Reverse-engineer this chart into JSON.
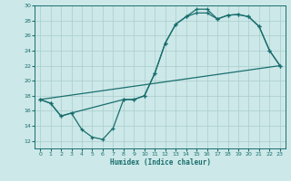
{
  "xlabel": "Humidex (Indice chaleur)",
  "bg_color": "#cce8e8",
  "grid_color": "#aacccc",
  "line_color": "#1a6e6e",
  "xlim": [
    -0.5,
    23.5
  ],
  "ylim": [
    11,
    30
  ],
  "xticks": [
    0,
    1,
    2,
    3,
    4,
    5,
    6,
    7,
    8,
    9,
    10,
    11,
    12,
    13,
    14,
    15,
    16,
    17,
    18,
    19,
    20,
    21,
    22,
    23
  ],
  "yticks": [
    12,
    14,
    16,
    18,
    20,
    22,
    24,
    26,
    28,
    30
  ],
  "line1_x": [
    0,
    1,
    2,
    3,
    4,
    5,
    6,
    7,
    8,
    9,
    10,
    11,
    12,
    13,
    14,
    15,
    16,
    17,
    18,
    19,
    20,
    21,
    22,
    23
  ],
  "line1_y": [
    17.5,
    17.0,
    15.3,
    15.7,
    13.5,
    12.5,
    12.2,
    13.7,
    17.5,
    17.5,
    18.0,
    21.0,
    25.0,
    27.5,
    28.5,
    29.5,
    29.5,
    28.2,
    28.7,
    28.8,
    28.5,
    27.2,
    24.0,
    22.0
  ],
  "line2_x": [
    0,
    23
  ],
  "line2_y": [
    17.5,
    22.0
  ],
  "line3_x": [
    0,
    1,
    2,
    3,
    8,
    9,
    10,
    11,
    12,
    13,
    14,
    15,
    16,
    17,
    18,
    19,
    20,
    21,
    22,
    23
  ],
  "line3_y": [
    17.5,
    17.0,
    15.3,
    15.7,
    17.5,
    17.5,
    18.0,
    21.0,
    25.0,
    27.5,
    28.5,
    29.0,
    29.0,
    28.2,
    28.7,
    28.8,
    28.5,
    27.2,
    24.0,
    22.0
  ]
}
